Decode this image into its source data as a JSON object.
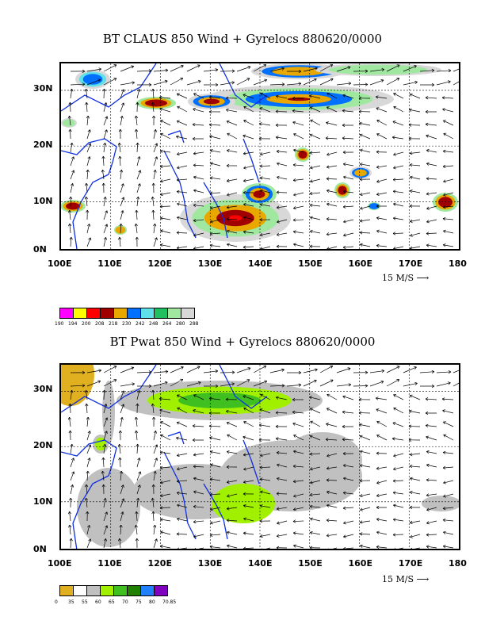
{
  "panel1": {
    "title": "BT CLAUS 850 Wind + Gyrelocs 880620/0000",
    "lat_labels": [
      "30N",
      "20N",
      "10N",
      "0N"
    ],
    "lon_labels": [
      "100E",
      "110E",
      "120E",
      "130E",
      "140E",
      "150E",
      "160E",
      "170E",
      "180"
    ],
    "scale_label": "15 M/S",
    "legend_colors": [
      "#ff00ff",
      "#ffff00",
      "#ff0000",
      "#a00000",
      "#e8a800",
      "#0070ff",
      "#60e0e8",
      "#20c060",
      "#a0e8a0",
      "#d8d8d8"
    ],
    "legend_ticks": [
      "190",
      "194",
      "200",
      "208",
      "218",
      "230",
      "242",
      "248",
      "264",
      "280",
      "288"
    ]
  },
  "panel2": {
    "title": "BT Pwat 850 Wind + Gyrelocs 880620/0000",
    "lat_labels": [
      "30N",
      "20N",
      "10N",
      "0N"
    ],
    "lon_labels": [
      "100E",
      "110E",
      "120E",
      "130E",
      "140E",
      "150E",
      "160E",
      "170E",
      "180"
    ],
    "scale_label": "15 M/S",
    "legend_colors": [
      "#e0b020",
      "#ffffff",
      "#c0c0c0",
      "#a0f000",
      "#40c020",
      "#208000",
      "#2080ff",
      "#8000c0"
    ],
    "legend_ticks": [
      "0",
      "35",
      "55",
      "60",
      "65",
      "70",
      "75",
      "80",
      "70.85"
    ]
  }
}
